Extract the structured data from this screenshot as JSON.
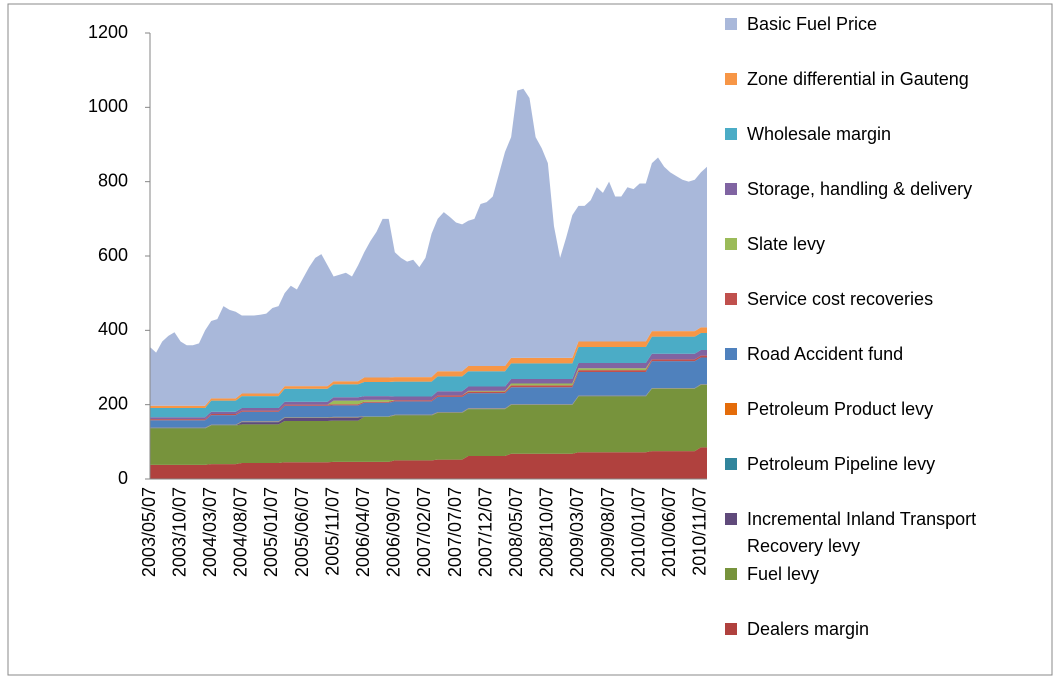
{
  "chart_data": {
    "type": "stacked-area",
    "categories": [
      "2003/05/07",
      null,
      null,
      null,
      null,
      "2003/10/07",
      null,
      null,
      null,
      null,
      "2004/03/07",
      null,
      null,
      null,
      null,
      "2004/08/07",
      null,
      null,
      null,
      null,
      "2005/01/07",
      null,
      null,
      null,
      null,
      "2005/06/07",
      null,
      null,
      null,
      null,
      "2005/11/07",
      null,
      null,
      null,
      null,
      "2006/04/07",
      null,
      null,
      null,
      null,
      "2006/09/07",
      null,
      null,
      null,
      null,
      "2007/02/07",
      null,
      null,
      null,
      null,
      "2007/07/07",
      null,
      null,
      null,
      null,
      "2007/12/07",
      null,
      null,
      null,
      null,
      "2008/05/07",
      null,
      null,
      null,
      null,
      "2008/10/07",
      null,
      null,
      null,
      null,
      "2009/03/07",
      null,
      null,
      null,
      null,
      "2009/08/07",
      null,
      null,
      null,
      null,
      "2010/01/07",
      null,
      null,
      null,
      null,
      "2010/06/07",
      null,
      null,
      null,
      null,
      "2010/11/07",
      null
    ],
    "ylim": [
      0,
      1200
    ],
    "yticks": [
      0,
      200,
      400,
      600,
      800,
      1000,
      1200
    ],
    "series": [
      {
        "name": "Dealers margin",
        "color": "#b0413e",
        "values": [
          38,
          38,
          38,
          38,
          38,
          38,
          38,
          38,
          38,
          38,
          40,
          40,
          40,
          40,
          40,
          43,
          43,
          43,
          43,
          43,
          43,
          43,
          45,
          45,
          45,
          45,
          45,
          45,
          45,
          45,
          46,
          46,
          46,
          46,
          46,
          46,
          46,
          46,
          46,
          46,
          50,
          50,
          50,
          50,
          50,
          50,
          50,
          52,
          52,
          52,
          52,
          52,
          62,
          62,
          62,
          62,
          62,
          62,
          62,
          68,
          68,
          68,
          68,
          68,
          68,
          68,
          68,
          68,
          68,
          68,
          72,
          72,
          72,
          72,
          72,
          72,
          72,
          72,
          72,
          72,
          72,
          72,
          75,
          75,
          75,
          75,
          75,
          75,
          75,
          75,
          85,
          85
        ]
      },
      {
        "name": "Fuel levy",
        "color": "#77933c",
        "values": [
          98,
          98,
          98,
          98,
          98,
          98,
          98,
          98,
          98,
          98,
          104,
          104,
          104,
          104,
          104,
          104,
          104,
          104,
          104,
          104,
          104,
          104,
          111,
          111,
          111,
          111,
          111,
          111,
          111,
          111,
          111,
          111,
          111,
          111,
          111,
          121,
          121,
          121,
          121,
          121,
          121,
          121,
          121,
          121,
          121,
          121,
          121,
          126,
          126,
          126,
          126,
          126,
          126,
          126,
          126,
          126,
          126,
          126,
          126,
          131,
          131,
          131,
          131,
          131,
          131,
          131,
          131,
          131,
          131,
          131,
          150,
          150,
          150,
          150,
          150,
          150,
          150,
          150,
          150,
          150,
          150,
          150,
          168,
          168,
          168,
          168,
          168,
          168,
          168,
          168,
          168,
          168
        ]
      },
      {
        "name": "Incremental Inland Transport Recovery levy",
        "color": "#604a7b",
        "values": [
          0,
          0,
          0,
          0,
          0,
          0,
          0,
          0,
          0,
          0,
          0,
          0,
          0,
          0,
          0,
          6,
          6,
          6,
          6,
          6,
          6,
          6,
          8,
          8,
          8,
          8,
          8,
          8,
          8,
          8,
          8,
          8,
          8,
          8,
          8,
          0,
          0,
          0,
          0,
          0,
          0,
          0,
          0,
          0,
          0,
          0,
          0,
          0,
          0,
          0,
          0,
          0,
          0,
          0,
          0,
          0,
          0,
          0,
          0,
          0,
          0,
          0,
          0,
          0,
          0,
          0,
          0,
          0,
          0,
          0,
          0,
          0,
          0,
          0,
          0,
          0,
          0,
          0,
          0,
          0,
          0,
          0,
          0,
          0,
          0,
          0,
          0,
          0,
          0,
          0,
          0,
          0
        ]
      },
      {
        "name": "Petroleum Pipeline levy",
        "color": "#31859c",
        "values": [
          1,
          1,
          1,
          1,
          1,
          1,
          1,
          1,
          1,
          1,
          1,
          1,
          1,
          1,
          1,
          1,
          1,
          1,
          1,
          1,
          1,
          1,
          1,
          1,
          1,
          1,
          1,
          1,
          1,
          1,
          1,
          1,
          1,
          1,
          1,
          1,
          1,
          1,
          1,
          1,
          1,
          1,
          1,
          1,
          1,
          1,
          1,
          1,
          1,
          1,
          1,
          1,
          1,
          1,
          1,
          1,
          1,
          1,
          1,
          1,
          1,
          1,
          1,
          1,
          1,
          1,
          1,
          1,
          1,
          1,
          1,
          1,
          1,
          1,
          1,
          1,
          1,
          1,
          1,
          1,
          1,
          1,
          1,
          1,
          1,
          1,
          1,
          1,
          1,
          1,
          1,
          1
        ]
      },
      {
        "name": "Petroleum Product levy",
        "color": "#e46c0a",
        "values": [
          1,
          1,
          1,
          1,
          1,
          1,
          1,
          1,
          1,
          1,
          1,
          1,
          1,
          1,
          1,
          1,
          1,
          1,
          1,
          1,
          1,
          1,
          1,
          1,
          1,
          1,
          1,
          1,
          1,
          1,
          1,
          1,
          1,
          1,
          1,
          1,
          1,
          1,
          1,
          1,
          1,
          1,
          1,
          1,
          1,
          1,
          1,
          1,
          1,
          1,
          1,
          1,
          1,
          1,
          1,
          1,
          1,
          1,
          1,
          1,
          1,
          1,
          1,
          1,
          1,
          1,
          1,
          1,
          1,
          1,
          1,
          1,
          1,
          1,
          1,
          1,
          1,
          1,
          1,
          1,
          1,
          1,
          1,
          1,
          1,
          1,
          1,
          1,
          1,
          1,
          1,
          1
        ]
      },
      {
        "name": "Road Accident fund",
        "color": "#4f81bd",
        "values": [
          20,
          20,
          20,
          20,
          20,
          20,
          20,
          20,
          20,
          20,
          26,
          26,
          26,
          26,
          26,
          26,
          26,
          26,
          26,
          26,
          26,
          26,
          31,
          31,
          31,
          31,
          31,
          31,
          31,
          31,
          31,
          31,
          31,
          31,
          31,
          36,
          36,
          36,
          36,
          36,
          36,
          36,
          36,
          36,
          36,
          36,
          36,
          41,
          41,
          41,
          41,
          41,
          41,
          41,
          41,
          41,
          41,
          41,
          41,
          46,
          46,
          46,
          46,
          46,
          46,
          46,
          46,
          46,
          46,
          46,
          64,
          64,
          64,
          64,
          64,
          64,
          64,
          64,
          64,
          64,
          64,
          64,
          72,
          72,
          72,
          72,
          72,
          72,
          72,
          72,
          72,
          72
        ]
      },
      {
        "name": "Service cost recoveries",
        "color": "#c0504d",
        "values": [
          3,
          3,
          3,
          3,
          3,
          3,
          3,
          3,
          3,
          3,
          3,
          3,
          3,
          3,
          3,
          3,
          3,
          3,
          3,
          3,
          3,
          3,
          3,
          3,
          3,
          3,
          3,
          3,
          3,
          3,
          3,
          3,
          3,
          3,
          3,
          3,
          3,
          3,
          3,
          3,
          3,
          3,
          3,
          3,
          3,
          3,
          3,
          4,
          4,
          4,
          4,
          4,
          4,
          4,
          4,
          4,
          4,
          4,
          4,
          5,
          5,
          5,
          5,
          5,
          5,
          5,
          5,
          5,
          5,
          5,
          5,
          5,
          5,
          5,
          5,
          5,
          5,
          5,
          5,
          5,
          5,
          5,
          5,
          5,
          5,
          5,
          5,
          5,
          5,
          5,
          5,
          5
        ]
      },
      {
        "name": "Slate levy",
        "color": "#9bbb59",
        "values": [
          0,
          0,
          0,
          0,
          0,
          0,
          0,
          0,
          0,
          0,
          0,
          0,
          0,
          0,
          0,
          0,
          0,
          0,
          0,
          0,
          0,
          0,
          0,
          0,
          0,
          0,
          0,
          0,
          0,
          0,
          10,
          10,
          10,
          10,
          10,
          5,
          5,
          5,
          5,
          5,
          0,
          0,
          0,
          0,
          0,
          0,
          0,
          0,
          0,
          0,
          0,
          0,
          2,
          2,
          2,
          2,
          2,
          2,
          2,
          5,
          5,
          5,
          5,
          5,
          5,
          5,
          5,
          5,
          5,
          5,
          5,
          5,
          5,
          5,
          5,
          5,
          5,
          5,
          5,
          5,
          5,
          5,
          0,
          0,
          0,
          0,
          0,
          0,
          0,
          0,
          0,
          0
        ]
      },
      {
        "name": "Storage, handling & delivery",
        "color": "#8064a2",
        "values": [
          5,
          5,
          5,
          5,
          5,
          5,
          5,
          5,
          5,
          5,
          6,
          6,
          6,
          6,
          6,
          7,
          7,
          7,
          7,
          7,
          7,
          7,
          8,
          8,
          8,
          8,
          8,
          8,
          8,
          8,
          9,
          9,
          9,
          9,
          9,
          10,
          10,
          10,
          10,
          10,
          10,
          10,
          10,
          10,
          10,
          10,
          10,
          11,
          11,
          11,
          11,
          11,
          12,
          12,
          12,
          12,
          12,
          12,
          12,
          12,
          12,
          12,
          12,
          12,
          12,
          12,
          12,
          12,
          12,
          12,
          14,
          14,
          14,
          14,
          14,
          14,
          14,
          14,
          14,
          14,
          14,
          14,
          15,
          15,
          15,
          15,
          15,
          15,
          15,
          15,
          15,
          15
        ]
      },
      {
        "name": "Wholesale margin",
        "color": "#4bacc6",
        "values": [
          25,
          25,
          25,
          25,
          25,
          25,
          25,
          25,
          25,
          25,
          30,
          30,
          30,
          30,
          30,
          32,
          32,
          32,
          32,
          32,
          32,
          32,
          35,
          35,
          35,
          35,
          35,
          35,
          35,
          35,
          35,
          35,
          35,
          35,
          35,
          38,
          38,
          38,
          38,
          38,
          40,
          40,
          40,
          40,
          40,
          40,
          40,
          40,
          40,
          40,
          40,
          40,
          41,
          41,
          41,
          41,
          41,
          41,
          41,
          42,
          42,
          42,
          42,
          42,
          42,
          42,
          42,
          42,
          42,
          42,
          43,
          43,
          43,
          43,
          43,
          43,
          43,
          43,
          43,
          43,
          43,
          43,
          46,
          46,
          46,
          46,
          46,
          46,
          46,
          46,
          46,
          46
        ]
      },
      {
        "name": "Zone differential in Gauteng",
        "color": "#f79646",
        "values": [
          6,
          6,
          6,
          6,
          6,
          6,
          6,
          6,
          6,
          6,
          6,
          6,
          6,
          6,
          6,
          7,
          7,
          7,
          7,
          7,
          7,
          7,
          7,
          7,
          7,
          7,
          7,
          7,
          7,
          7,
          8,
          8,
          8,
          8,
          8,
          12,
          12,
          12,
          12,
          12,
          12,
          12,
          12,
          12,
          12,
          12,
          12,
          14,
          14,
          14,
          14,
          14,
          14,
          14,
          14,
          14,
          14,
          14,
          14,
          15,
          15,
          15,
          15,
          15,
          15,
          15,
          15,
          15,
          15,
          15,
          15,
          15,
          15,
          15,
          15,
          15,
          15,
          15,
          15,
          15,
          15,
          15,
          15,
          15,
          15,
          15,
          15,
          15,
          15,
          15,
          15,
          15
        ]
      },
      {
        "name": "Basic Fuel Price",
        "color": "#a9b8da",
        "values": [
          158,
          143,
          173,
          188,
          198,
          173,
          163,
          163,
          168,
          203,
          208,
          213,
          248,
          238,
          233,
          210,
          210,
          210,
          212,
          215,
          230,
          235,
          250,
          270,
          260,
          290,
          320,
          345,
          355,
          325,
          282,
          287,
          292,
          282,
          312,
          337,
          367,
          392,
          427,
          427,
          336,
          321,
          311,
          316,
          296,
          321,
          386,
          410,
          428,
          415,
          400,
          395,
          391,
          396,
          436,
          441,
          456,
          516,
          576,
          594,
          719,
          724,
          699,
          594,
          564,
          524,
          354,
          269,
          324,
          384,
          365,
          365,
          380,
          415,
          400,
          430,
          390,
          390,
          415,
          410,
          425,
          425,
          452,
          467,
          442,
          427,
          417,
          407,
          402,
          407,
          417,
          432
        ]
      }
    ]
  }
}
